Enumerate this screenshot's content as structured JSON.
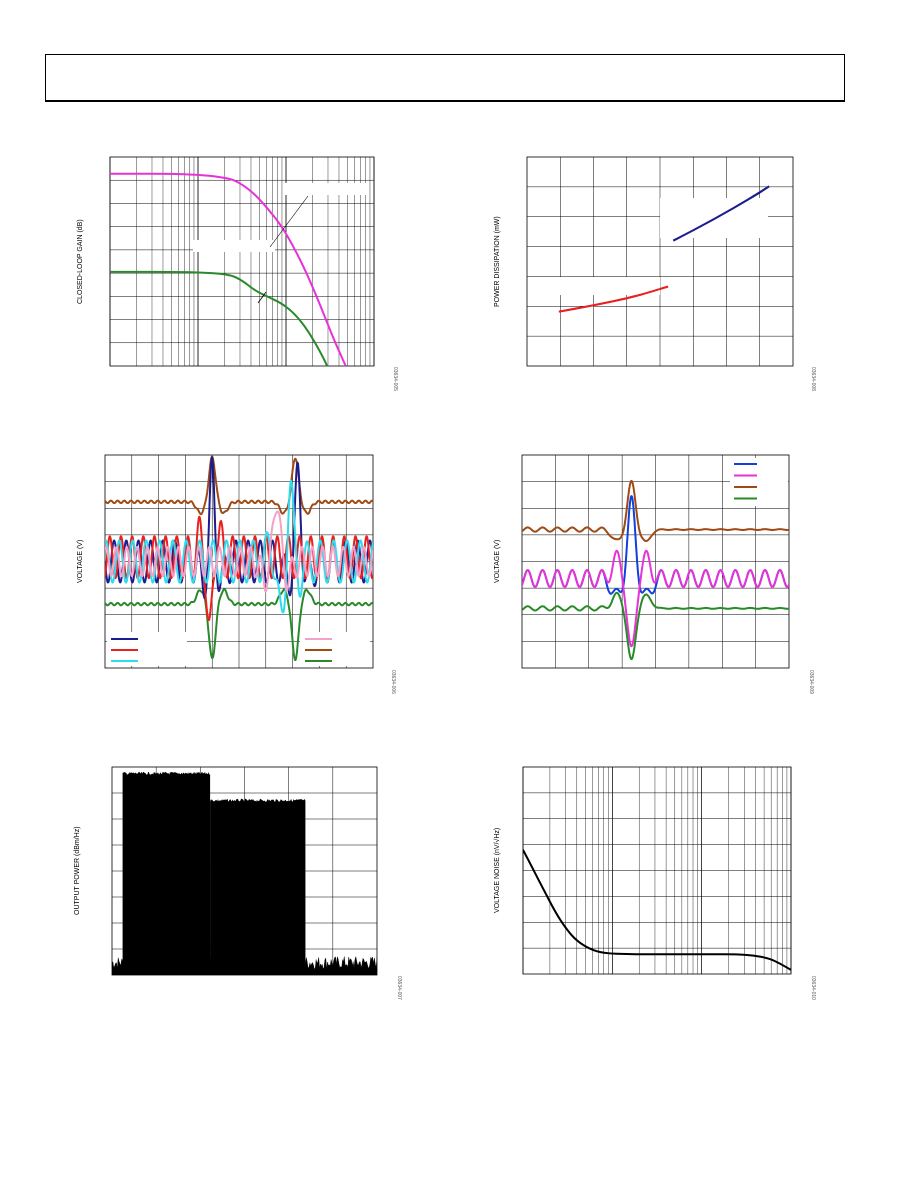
{
  "header": {},
  "colors": {
    "magenta": "#e832d8",
    "green": "#2a8a2a",
    "red": "#e82020",
    "navy": "#1c1c8c",
    "blue": "#1040e0",
    "brown": "#a04a14",
    "cyan": "#30dcec",
    "pink": "#f5a0c8",
    "black": "#000000"
  },
  "chart_data": [
    {
      "id": "c1",
      "type": "line",
      "ylabel": "CLOSED-LOOP GAIN (dB)",
      "figure_id": "03634-005",
      "x_scale": "log",
      "grid": true,
      "series": [
        {
          "color": "magenta",
          "x": [
            0,
            0.3,
            0.45,
            0.5,
            0.55,
            0.6,
            0.65,
            0.7,
            0.75,
            0.8,
            0.85,
            0.9
          ],
          "y": [
            0.92,
            0.92,
            0.9,
            0.87,
            0.82,
            0.75,
            0.67,
            0.56,
            0.43,
            0.28,
            0.12,
            -0.02
          ]
        },
        {
          "color": "green",
          "x": [
            0,
            0.3,
            0.45,
            0.5,
            0.55,
            0.6,
            0.65,
            0.7,
            0.75,
            0.8,
            0.83
          ],
          "y": [
            0.45,
            0.45,
            0.44,
            0.41,
            0.36,
            0.33,
            0.3,
            0.25,
            0.17,
            0.06,
            -0.02
          ]
        }
      ]
    },
    {
      "id": "c2",
      "type": "line",
      "ylabel": "POWER DISSIPATION (mW)",
      "figure_id": "03634-008",
      "grid": true,
      "series": [
        {
          "color": "red",
          "x": [
            0.12,
            0.25,
            0.4,
            0.53
          ],
          "y": [
            0.26,
            0.29,
            0.33,
            0.38
          ]
        },
        {
          "color": "navy",
          "x": [
            0.55,
            0.7,
            0.85,
            0.91
          ],
          "y": [
            0.6,
            0.7,
            0.81,
            0.86
          ]
        }
      ]
    },
    {
      "id": "c3",
      "type": "line",
      "ylabel": "VOLTAGE (V)",
      "figure_id": "03634-006",
      "grid": true,
      "legend_left_colors": [
        "navy",
        "red",
        "cyan"
      ],
      "legend_right_colors": [
        "pink",
        "brown",
        "green"
      ],
      "series": [
        {
          "color": "brown",
          "base": 0.78,
          "pulses": [
            [
              0.4,
              0.21,
              0.02
            ],
            [
              0.71,
              0.21,
              0.02
            ]
          ],
          "wobble": 0.006,
          "freq": 40
        },
        {
          "color": "green",
          "base": 0.3,
          "pulses": [
            [
              0.4,
              -0.26,
              0.02
            ],
            [
              0.71,
              -0.26,
              0.02
            ]
          ],
          "wobble": 0.006,
          "freq": 40
        },
        {
          "color": "navy",
          "base": 0.5,
          "pulses": [
            [
              0.4,
              0.4,
              0.016
            ],
            [
              0.72,
              0.38,
              0.018
            ]
          ],
          "wobble": 0.1,
          "freq": 22
        },
        {
          "color": "red",
          "base": 0.52,
          "pulses": [
            [
              0.39,
              -0.38,
              0.016
            ]
          ],
          "wobble": 0.1,
          "freq": 24
        },
        {
          "color": "cyan",
          "base": 0.5,
          "pulses": [
            [
              0.69,
              0.33,
              0.016
            ],
            [
              0.66,
              -0.22,
              0.02
            ]
          ],
          "wobble": 0.1,
          "freq": 20
        },
        {
          "color": "pink",
          "base": 0.5,
          "pulses": [
            [
              0.64,
              0.3,
              0.02
            ]
          ],
          "wobble": 0.07,
          "freq": 26
        }
      ]
    },
    {
      "id": "c4",
      "type": "line",
      "ylabel": "VOLTAGE (V)",
      "figure_id": "03634-009",
      "grid": true,
      "legend_colors": [
        "blue",
        "magenta",
        "brown",
        "green"
      ],
      "series": [
        {
          "color": "brown",
          "base": 0.65,
          "pulses": [
            [
              0.41,
              0.22,
              0.025
            ]
          ],
          "wobble": 0.01,
          "freq": 18,
          "wobble_end": 0.45
        },
        {
          "color": "blue",
          "base": 0.42,
          "pulses": [
            [
              0.41,
              0.35,
              0.025
            ]
          ],
          "wobble": 0.04,
          "freq": 18
        },
        {
          "color": "magenta",
          "base": 0.42,
          "pulses": [
            [
              0.41,
              -0.36,
              0.025
            ]
          ],
          "wobble": 0.04,
          "freq": 18
        },
        {
          "color": "green",
          "base": 0.28,
          "pulses": [
            [
              0.41,
              -0.25,
              0.025
            ]
          ],
          "wobble": 0.01,
          "freq": 18,
          "wobble_end": 0.45
        }
      ]
    },
    {
      "id": "c5",
      "type": "area",
      "ylabel": "OUTPUT POWER (dBm/Hz)",
      "figure_id": "03634-007",
      "grid": true,
      "blocks": [
        {
          "x0": 0.04,
          "x1": 0.37,
          "y": 0.97
        },
        {
          "x0": 0.37,
          "x1": 0.73,
          "y": 0.84
        }
      ],
      "noise_floor": 0.07
    },
    {
      "id": "c6",
      "type": "line",
      "ylabel": "VOLTAGE NOISE (nV/√Hz)",
      "figure_id": "03634-010",
      "x_scale": "log",
      "grid": true,
      "series": [
        {
          "color": "black",
          "x": [
            0,
            0.04,
            0.08,
            0.12,
            0.16,
            0.2,
            0.25,
            0.3,
            0.4,
            0.5,
            0.6,
            0.7,
            0.8,
            0.86,
            0.92,
            0.96,
            1.0
          ],
          "y": [
            0.6,
            0.5,
            0.4,
            0.3,
            0.22,
            0.16,
            0.12,
            0.1,
            0.095,
            0.095,
            0.095,
            0.095,
            0.095,
            0.09,
            0.075,
            0.05,
            0.02
          ]
        }
      ]
    }
  ]
}
